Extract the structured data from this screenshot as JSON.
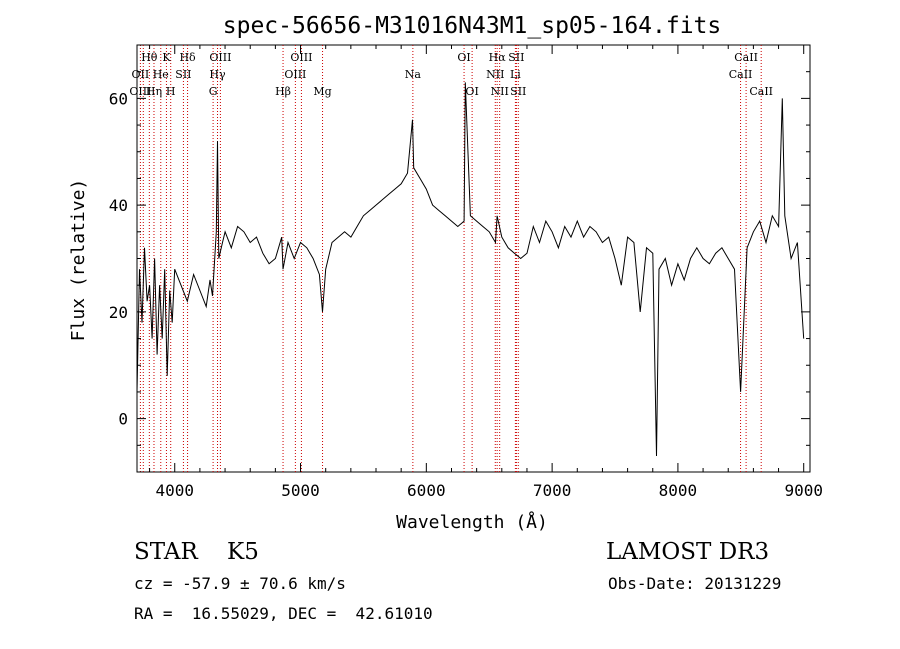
{
  "chart_data": {
    "type": "line",
    "title": "spec-56656-M31016N43M1_sp05-164.fits",
    "xlabel": "Wavelength (Å)",
    "ylabel": "Flux (relative)",
    "xlim": [
      3700,
      9050
    ],
    "ylim": [
      -10,
      70
    ],
    "xticks": [
      4000,
      5000,
      6000,
      7000,
      8000,
      9000
    ],
    "yticks": [
      0,
      20,
      40,
      60
    ],
    "grid": false,
    "line_color": "#000000",
    "marker_color": "#cc0000",
    "series": [
      {
        "x": [
          3700,
          3720,
          3740,
          3760,
          3780,
          3800,
          3820,
          3840,
          3860,
          3880,
          3900,
          3920,
          3940,
          3960,
          3980,
          4000,
          4050,
          4100,
          4150,
          4200,
          4250,
          4280,
          4300,
          4330,
          4340,
          4350,
          4380,
          4400,
          4450,
          4500,
          4550,
          4600,
          4650,
          4700,
          4750,
          4800,
          4850,
          4861,
          4900,
          4950,
          5000,
          5050,
          5100,
          5150,
          5175,
          5200,
          5250,
          5300,
          5350,
          5400,
          5450,
          5500,
          5550,
          5600,
          5650,
          5700,
          5750,
          5800,
          5850,
          5890,
          5900,
          5950,
          6000,
          6050,
          6100,
          6150,
          6200,
          6250,
          6300,
          6310,
          6350,
          6400,
          6450,
          6500,
          6550,
          6563,
          6600,
          6650,
          6700,
          6750,
          6800,
          6850,
          6900,
          6950,
          7000,
          7050,
          7100,
          7150,
          7200,
          7250,
          7300,
          7350,
          7400,
          7450,
          7500,
          7550,
          7600,
          7650,
          7700,
          7750,
          7800,
          7830,
          7850,
          7900,
          7950,
          8000,
          8050,
          8100,
          8150,
          8200,
          8250,
          8300,
          8350,
          8400,
          8450,
          8498,
          8550,
          8600,
          8650,
          8700,
          8750,
          8800,
          8830,
          8850,
          8900,
          8950,
          9000
        ],
        "y": [
          5,
          28,
          18,
          32,
          22,
          25,
          15,
          30,
          12,
          25,
          15,
          28,
          8,
          24,
          18,
          28,
          25,
          22,
          27,
          24,
          21,
          26,
          23,
          35,
          52,
          30,
          33,
          35,
          32,
          36,
          35,
          33,
          34,
          31,
          29,
          30,
          34,
          28,
          33,
          30,
          33,
          32,
          30,
          27,
          20,
          28,
          33,
          34,
          35,
          34,
          36,
          38,
          39,
          40,
          41,
          42,
          43,
          44,
          46,
          56,
          47,
          45,
          43,
          40,
          39,
          38,
          37,
          36,
          37,
          63,
          38,
          37,
          36,
          35,
          33,
          38,
          34,
          32,
          31,
          30,
          31,
          36,
          33,
          37,
          35,
          32,
          36,
          34,
          37,
          34,
          36,
          35,
          33,
          34,
          30,
          25,
          34,
          33,
          20,
          32,
          31,
          -7,
          28,
          30,
          25,
          29,
          26,
          30,
          32,
          30,
          29,
          31,
          32,
          30,
          28,
          5,
          32,
          35,
          37,
          33,
          38,
          36,
          60,
          38,
          30,
          33,
          15
        ]
      }
    ],
    "line_markers": [
      {
        "label": "Hθ",
        "x": 3798,
        "row": 1
      },
      {
        "label": "OII",
        "x": 3727,
        "row": 2
      },
      {
        "label": "OIII",
        "x": 3727,
        "row": 3
      },
      {
        "label": "Hη",
        "x": 3835,
        "row": 3
      },
      {
        "label": "K",
        "x": 3934,
        "row": 1
      },
      {
        "label": "He",
        "x": 3889,
        "row": 2
      },
      {
        "label": "SII",
        "x": 4069,
        "row": 2
      },
      {
        "label": "H",
        "x": 3968,
        "row": 3
      },
      {
        "label": "Hδ",
        "x": 4102,
        "row": 1
      },
      {
        "label": "OIII",
        "x": 4363,
        "row": 1
      },
      {
        "label": "Hγ",
        "x": 4340,
        "row": 2
      },
      {
        "label": "G",
        "x": 4305,
        "row": 3
      },
      {
        "label": "OIII",
        "x": 5007,
        "row": 1
      },
      {
        "label": "OIII",
        "x": 4959,
        "row": 2
      },
      {
        "label": "Hβ",
        "x": 4861,
        "row": 3
      },
      {
        "label": "Mg",
        "x": 5175,
        "row": 3
      },
      {
        "label": "Na",
        "x": 5893,
        "row": 2
      },
      {
        "label": "OI",
        "x": 6300,
        "row": 1
      },
      {
        "label": "OI",
        "x": 6364,
        "row": 3
      },
      {
        "label": "Hα",
        "x": 6563,
        "row": 1
      },
      {
        "label": "SII",
        "x": 6716,
        "row": 1
      },
      {
        "label": "NII",
        "x": 6548,
        "row": 2
      },
      {
        "label": "Li",
        "x": 6708,
        "row": 2
      },
      {
        "label": "NII",
        "x": 6583,
        "row": 3
      },
      {
        "label": "SII",
        "x": 6731,
        "row": 3
      },
      {
        "label": "CaII",
        "x": 8542,
        "row": 1
      },
      {
        "label": "CaII",
        "x": 8498,
        "row": 2
      },
      {
        "label": "CaII",
        "x": 8662,
        "row": 3
      }
    ],
    "marker_lines_x": [
      3727,
      3750,
      3798,
      3835,
      3889,
      3934,
      3968,
      4069,
      4102,
      4305,
      4340,
      4363,
      4861,
      4959,
      5007,
      5175,
      5893,
      6300,
      6364,
      6548,
      6563,
      6583,
      6708,
      6716,
      6731,
      8498,
      8542,
      8662
    ]
  },
  "info": {
    "class_line": "STAR    K5",
    "survey": "LAMOST DR3",
    "cz_line": "cz = -57.9 ± 70.6 km/s",
    "obs_date": "Obs-Date: 20131229",
    "coords": "RA =  16.55029, DEC =  42.61010"
  }
}
